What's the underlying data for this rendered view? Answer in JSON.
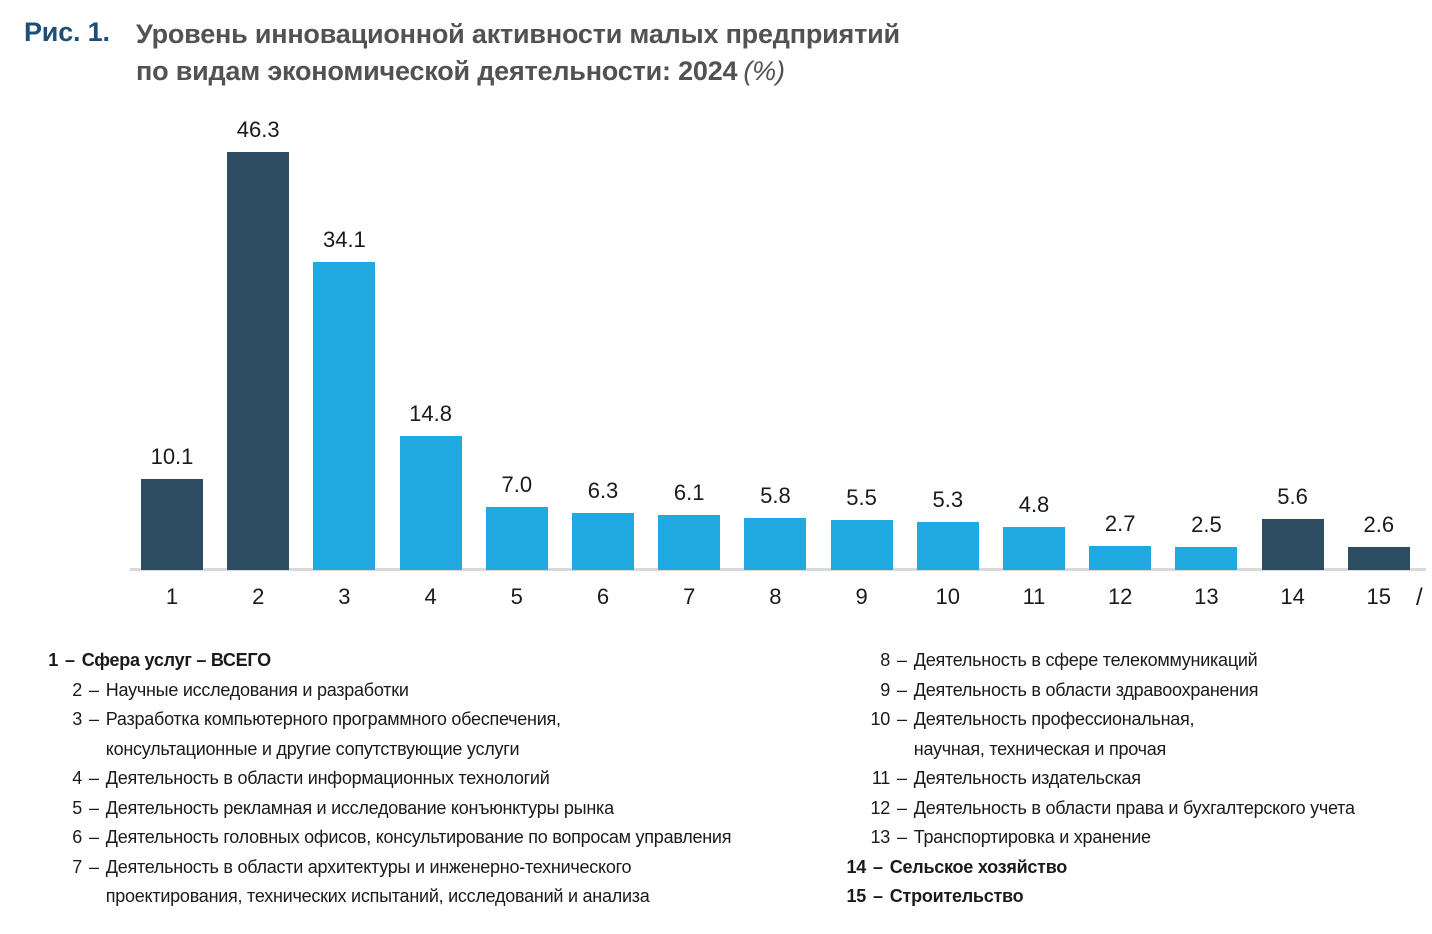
{
  "figure": {
    "label": "Рис. 1.",
    "title_line1": "Уровень инновационной активности малых предприятий",
    "title_line2": "по видам экономической деятельности: 2024",
    "title_suffix": "(%)"
  },
  "chart_data": {
    "type": "bar",
    "title": "Уровень инновационной активности малых предприятий по видам экономической деятельности: 2024 (%)",
    "categories": [
      "1",
      "2",
      "3",
      "4",
      "5",
      "6",
      "7",
      "8",
      "9",
      "10",
      "11",
      "12",
      "13",
      "14",
      "15"
    ],
    "values": [
      10.1,
      46.3,
      34.1,
      14.8,
      7.0,
      6.3,
      6.1,
      5.8,
      5.5,
      5.3,
      4.8,
      2.7,
      2.5,
      5.6,
      2.6
    ],
    "value_labels": [
      "10.1",
      "46.3",
      "34.1",
      "14.8",
      "7.0",
      "6.3",
      "6.1",
      "5.8",
      "5.5",
      "5.3",
      "4.8",
      "2.7",
      "2.5",
      "5.6",
      "2.6"
    ],
    "bar_color_keys": [
      "dark",
      "dark",
      "light",
      "light",
      "light",
      "light",
      "light",
      "light",
      "light",
      "light",
      "light",
      "light",
      "light",
      "dark",
      "dark"
    ],
    "bar_palette": {
      "dark": "#2E4C62",
      "light": "#21A9E1"
    },
    "axis_color": "#D9D9D9",
    "xlabel": "",
    "ylabel": "",
    "ylim": [
      0,
      50
    ],
    "grid": false,
    "value_labels_shown": true,
    "legend_position": "bottom-footnotes"
  },
  "axis_suffix": "/",
  "legend": {
    "left": [
      {
        "num": "1",
        "text": "Сфера услуг – ВСЕГО",
        "bold": true,
        "indent": 0
      },
      {
        "num": "2",
        "text": "Научные исследования и разработки",
        "bold": false,
        "indent": 1
      },
      {
        "num": "3",
        "text": "Разработка компьютерного программного обеспечения,\nконсультационные и другие сопутствующие услуги",
        "bold": false,
        "indent": 1
      },
      {
        "num": "4",
        "text": "Деятельность в области информационных технологий",
        "bold": false,
        "indent": 1
      },
      {
        "num": "5",
        "text": "Деятельность рекламная и исследование конъюнктуры рынка",
        "bold": false,
        "indent": 1
      },
      {
        "num": "6",
        "text": "Деятельность головных офисов, консультирование по вопросам управления",
        "bold": false,
        "indent": 1
      },
      {
        "num": "7",
        "text": "Деятельность в области архитектуры и инженерно-технического\nпроектирования, технических испытаний, исследований и анализа",
        "bold": false,
        "indent": 1
      }
    ],
    "right": [
      {
        "num": "8",
        "text": "Деятельность в сфере телекоммуникаций",
        "bold": false,
        "indent": 1
      },
      {
        "num": "9",
        "text": "Деятельность в области здравоохранения",
        "bold": false,
        "indent": 1
      },
      {
        "num": "10",
        "text": "Деятельность профессиональная,\nнаучная, техническая и прочая",
        "bold": false,
        "indent": 1
      },
      {
        "num": "11",
        "text": "Деятельность издательская",
        "bold": false,
        "indent": 1
      },
      {
        "num": "12",
        "text": "Деятельность в области права и бухгалтерского учета",
        "bold": false,
        "indent": 1
      },
      {
        "num": "13",
        "text": "Транспортировка и хранение",
        "bold": false,
        "indent": 1
      },
      {
        "num": "14",
        "text": "Сельское хозяйство",
        "bold": true,
        "indent": 0
      },
      {
        "num": "15",
        "text": "Строительство",
        "bold": true,
        "indent": 0
      }
    ]
  }
}
